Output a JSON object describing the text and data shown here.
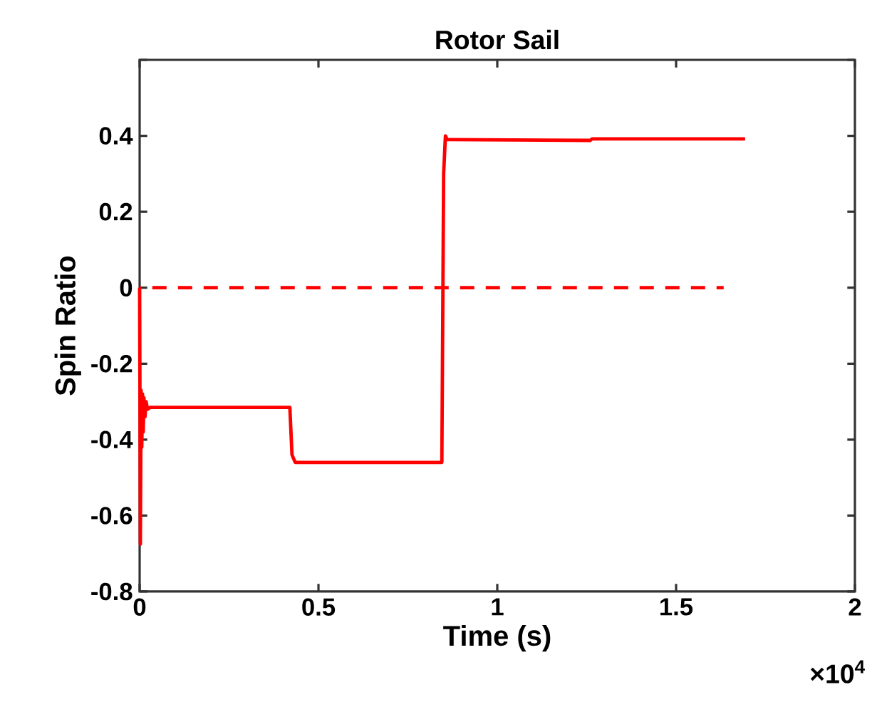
{
  "chart_data": {
    "type": "line",
    "title": "Rotor Sail",
    "xlabel": "Time (s)",
    "ylabel": "Spin Ratio",
    "annotations": [
      "×10$^{4}$"
    ],
    "xlim": [
      0,
      2
    ],
    "ylim": [
      -0.8,
      0.6
    ],
    "xticks": [
      0,
      0.5,
      1,
      1.5,
      2
    ],
    "yticks": [
      -0.8,
      -0.6,
      -0.4,
      -0.2,
      0,
      0.2,
      0.4,
      {
        "value": 0.6,
        "label": null
      }
    ],
    "series": [
      {
        "color": "#ff0000",
        "line_style": "solid",
        "x": [
          0,
          0.002,
          0.004,
          0.006,
          0.008,
          0.01,
          0.012,
          0.015,
          0.018,
          0.022,
          0.03,
          0.42,
          0.426,
          0.435,
          0.45,
          0.845,
          0.85,
          0.855,
          0.86,
          0.87,
          1.26,
          1.265,
          1.693
        ],
        "values": [
          0,
          -0.675,
          -0.27,
          -0.42,
          -0.28,
          -0.38,
          -0.29,
          -0.34,
          -0.3,
          -0.32,
          -0.315,
          -0.315,
          -0.44,
          -0.46,
          -0.46,
          -0.46,
          0.3,
          0.4,
          0.39,
          0.39,
          0.388,
          0.392,
          0.392
        ]
      },
      {
        "color": "#ff0000",
        "line_style": "dashed",
        "x": [
          0,
          1.633
        ],
        "values": [
          0,
          0
        ]
      }
    ]
  }
}
